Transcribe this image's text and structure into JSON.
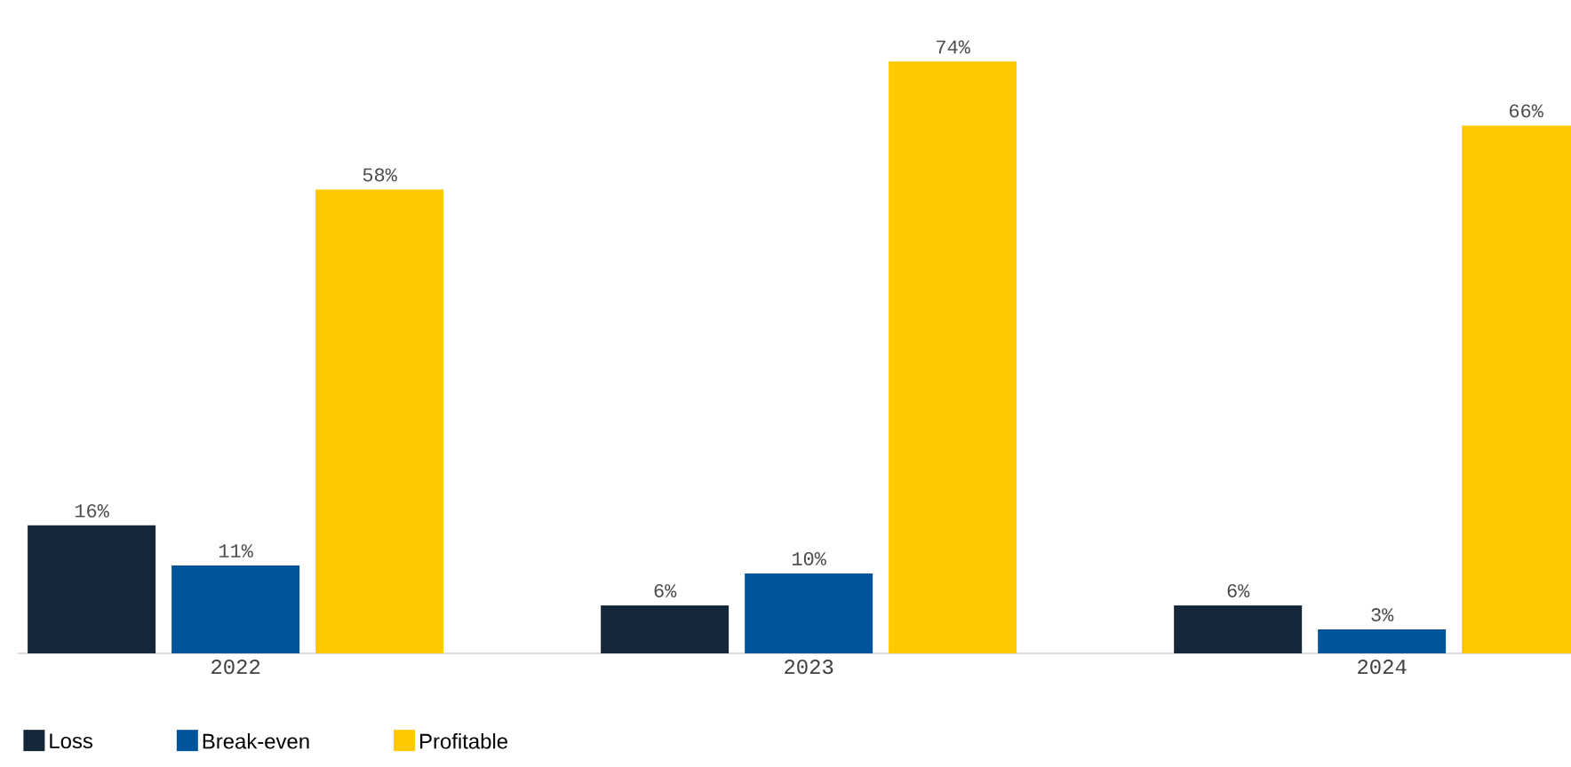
{
  "chart_data": {
    "type": "bar",
    "categories": [
      "2022",
      "2023",
      "2024"
    ],
    "legend": "bottom left",
    "series": [
      {
        "name": "Loss",
        "color": "#17273a",
        "values": [
          16,
          6,
          6
        ],
        "value_labels": [
          "16%",
          "6%",
          "6%"
        ]
      },
      {
        "name": "Break-even",
        "color": "#00549a",
        "values": [
          11,
          10,
          3
        ],
        "value_labels": [
          "11%",
          "10%",
          "3%"
        ]
      },
      {
        "name": "Profitable",
        "color": "#ffc900",
        "values": [
          58,
          74,
          66
        ],
        "value_labels": [
          "58%",
          "74%",
          "66%"
        ]
      }
    ]
  }
}
